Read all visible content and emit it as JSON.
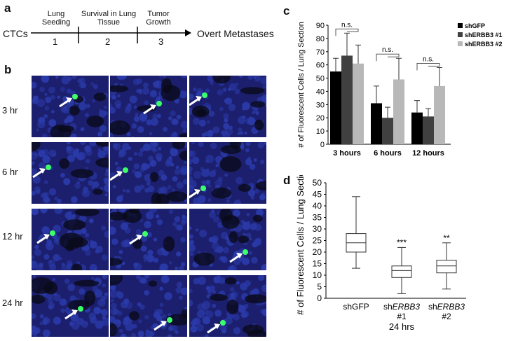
{
  "panel_a": {
    "letter": "a",
    "start": "CTCs",
    "end": "Overt Metastases",
    "steps": [
      {
        "label": "Lung Seeding",
        "num": "1"
      },
      {
        "label": "Survival in Lung Tissue",
        "num": "2"
      },
      {
        "label": "Tumor Growth",
        "num": "3"
      }
    ]
  },
  "panel_b": {
    "letter": "b",
    "rows": [
      "3 hr",
      "6 hr",
      "12 hr",
      "24 hr"
    ]
  },
  "colors": {
    "shGFP": "#000000",
    "shERBB3_1": "#404040",
    "shERBB3_2": "#b8b8b8",
    "micrograph_blue": "#2a3aa8",
    "cell_green": "#3dff6a"
  },
  "chart_data": [
    {
      "panel": "c",
      "type": "bar",
      "ylabel": "# of Fluorescent Cells / Lung Section",
      "ylim": [
        0,
        90
      ],
      "yticks": [
        0,
        10,
        20,
        30,
        40,
        50,
        60,
        70,
        80,
        90
      ],
      "categories": [
        "3 hours",
        "6 hours",
        "12 hours"
      ],
      "series": [
        {
          "name": "shGFP",
          "values": [
            55,
            31,
            24
          ],
          "errors": [
            10,
            13,
            9
          ]
        },
        {
          "name": "shERBB3 #1",
          "values": [
            67,
            20,
            21
          ],
          "errors": [
            17,
            8,
            6
          ]
        },
        {
          "name": "shERBB3 #2",
          "values": [
            61,
            49,
            44
          ],
          "errors": [
            14,
            16,
            14
          ]
        }
      ],
      "annotations": [
        "n.s.",
        "n.s.",
        "n.s."
      ],
      "legend_position": "top-right"
    },
    {
      "panel": "d",
      "type": "box",
      "ylabel": "# of Fluorescent Cells / Lung Section",
      "ylim": [
        0,
        50
      ],
      "yticks": [
        0,
        5,
        10,
        15,
        20,
        25,
        30,
        35,
        40,
        45,
        50
      ],
      "categories": [
        {
          "prefix": "sh",
          "gene": "",
          "plain": "GFP",
          "suffix": ""
        },
        {
          "prefix": "sh",
          "gene": "ERBB3",
          "plain": "",
          "suffix": "#1"
        },
        {
          "prefix": "sh",
          "gene": "ERBB3",
          "plain": "",
          "suffix": "#2"
        }
      ],
      "boxes": [
        {
          "min": 13,
          "q1": 20,
          "median": 24,
          "q3": 28,
          "max": 44,
          "sig": ""
        },
        {
          "min": 2,
          "q1": 9,
          "median": 12,
          "q3": 14,
          "max": 22,
          "sig": "***"
        },
        {
          "min": 4,
          "q1": 11,
          "median": 14,
          "q3": 16.5,
          "max": 24,
          "sig": "**"
        }
      ],
      "xlabel": "24 hrs"
    }
  ]
}
